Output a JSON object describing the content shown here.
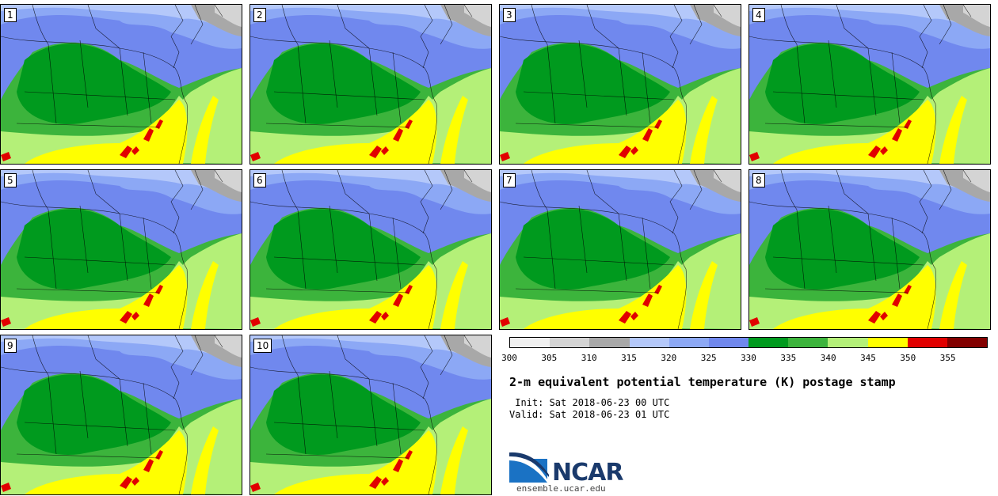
{
  "title": "2-m equivalent potential temperature (K) postage stamp",
  "init_text": " Init: Sat 2018-06-23 00 UTC",
  "valid_text": "Valid: Sat 2018-06-23 01 UTC",
  "panels": [
    {
      "label": "1"
    },
    {
      "label": "2"
    },
    {
      "label": "3"
    },
    {
      "label": "4"
    },
    {
      "label": "5"
    },
    {
      "label": "6"
    },
    {
      "label": "7"
    },
    {
      "label": "8"
    },
    {
      "label": "9"
    },
    {
      "label": "10"
    }
  ],
  "colorbar": {
    "ticks": [
      "300",
      "305",
      "310",
      "315",
      "320",
      "325",
      "330",
      "335",
      "340",
      "345",
      "350",
      "355"
    ],
    "colors": [
      "#f0f0f0",
      "#d4d4d4",
      "#a8a8a8",
      "#b4c8fa",
      "#8ca8f5",
      "#7088ee",
      "#009a1e",
      "#3cb43c",
      "#b4f078",
      "#ffff00",
      "#e10000",
      "#820000"
    ]
  },
  "logo": {
    "name": "NCAR",
    "url": "ensemble.ucar.edu"
  }
}
